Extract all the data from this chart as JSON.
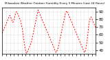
{
  "title": "Milwaukee Weather Outdoor Humidity Every 5 Minutes (Last 24 Hours)",
  "line_color": "#ff0000",
  "bg_color": "#ffffff",
  "grid_color": "#aaaaaa",
  "ylim": [
    35,
    95
  ],
  "yticks": [
    40,
    50,
    60,
    70,
    80,
    90
  ],
  "y_data": [
    62,
    63,
    64,
    65,
    66,
    67,
    68,
    69,
    70,
    71,
    72,
    73,
    74,
    75,
    76,
    77,
    78,
    79,
    80,
    81,
    82,
    83,
    84,
    85,
    85,
    84,
    83,
    82,
    81,
    80,
    79,
    78,
    77,
    76,
    77,
    78,
    79,
    80,
    82,
    84,
    86,
    87,
    88,
    89,
    90,
    90,
    89,
    88,
    87,
    86,
    85,
    84,
    83,
    82,
    81,
    80,
    79,
    78,
    76,
    74,
    72,
    70,
    68,
    65,
    62,
    59,
    56,
    53,
    50,
    47,
    44,
    42,
    40,
    38,
    37,
    36,
    36,
    37,
    38,
    39,
    40,
    41,
    42,
    43,
    44,
    45,
    46,
    47,
    48,
    49,
    50,
    52,
    54,
    56,
    58,
    60,
    62,
    64,
    66,
    68,
    70,
    72,
    74,
    76,
    78,
    80,
    82,
    84,
    86,
    88,
    90,
    92,
    91,
    90,
    89,
    88,
    87,
    86,
    85,
    84,
    83,
    82,
    81,
    80,
    79,
    78,
    77,
    76,
    75,
    74,
    73,
    72,
    71,
    70,
    69,
    68,
    67,
    66,
    65,
    64,
    63,
    62,
    61,
    60,
    59,
    58,
    57,
    56,
    55,
    54,
    53,
    52,
    51,
    50,
    49,
    48,
    47,
    46,
    45,
    44,
    43,
    42,
    41,
    40,
    39,
    38,
    37,
    37,
    38,
    39,
    40,
    41,
    42,
    43,
    45,
    47,
    49,
    51,
    53,
    55,
    57,
    59,
    61,
    63,
    65,
    67,
    69,
    71,
    73,
    75,
    77,
    79,
    81,
    83,
    85,
    87,
    88,
    89,
    90,
    91,
    91,
    90,
    89,
    88,
    87,
    86,
    85,
    84,
    83,
    82,
    81,
    80,
    79,
    78,
    77,
    76,
    75,
    74,
    73,
    72,
    71,
    70,
    69,
    68,
    67,
    66,
    65,
    64,
    63,
    62,
    61,
    60,
    59,
    58,
    57,
    56,
    55,
    54,
    53,
    52,
    51,
    50,
    49,
    48,
    47,
    46,
    45,
    44,
    43,
    42,
    41,
    40,
    39,
    38,
    37,
    37,
    38,
    39,
    41,
    43,
    45,
    48,
    51,
    54,
    58,
    62,
    66,
    70,
    73,
    76,
    78,
    80,
    81,
    82,
    83,
    83,
    82,
    81,
    80,
    79,
    78,
    77,
    76,
    75,
    74,
    73,
    72,
    71,
    70,
    69
  ],
  "num_xticks": 25
}
